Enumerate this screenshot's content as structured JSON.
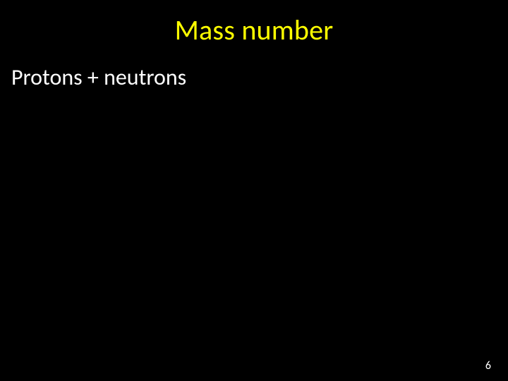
{
  "slide": {
    "title": "Mass number",
    "body": "Protons + neutrons",
    "page_number": "6",
    "colors": {
      "background": "#000000",
      "title_color": "#ffff00",
      "body_color": "#ffffff",
      "page_number_color": "#ffffff"
    },
    "fonts": {
      "title_fontsize": 40,
      "body_fontsize": 32,
      "page_number_fontsize": 16,
      "family": "Calibri"
    }
  }
}
